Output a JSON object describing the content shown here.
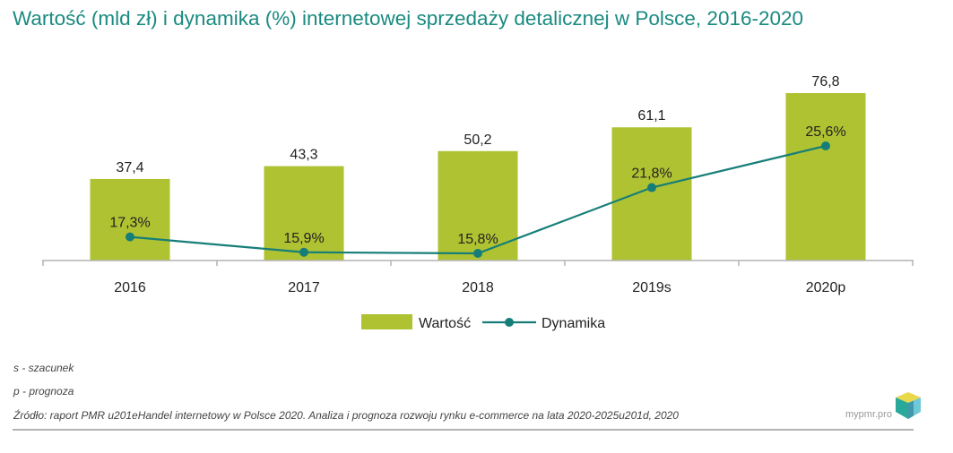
{
  "title": "Wartość (mld zł) i dynamika (%) internetowej sprzedaży detalicznej w Polsce, 2016-2020",
  "chart_data": {
    "type": "bar",
    "title": "Wartość (mld zł) i dynamika (%) internetowej sprzedaży detalicznej w Polsce, 2016-2020",
    "categories": [
      "2016",
      "2017",
      "2018",
      "2019s",
      "2020p"
    ],
    "series": [
      {
        "name": "Wartość",
        "type": "bar",
        "values": [
          37.4,
          43.3,
          50.2,
          61.1,
          76.8
        ],
        "labels": [
          "37,4",
          "43,3",
          "50,2",
          "61,1",
          "76,8"
        ],
        "color": "#afc232"
      },
      {
        "name": "Dynamika",
        "type": "line",
        "values": [
          17.3,
          15.9,
          15.8,
          21.8,
          25.6
        ],
        "labels": [
          "17,3%",
          "15,9%",
          "15,8%",
          "21,8%",
          "25,6%"
        ],
        "color": "#167e78"
      }
    ],
    "legend": "bottom",
    "grid": false
  },
  "notes": {
    "s": "s - szacunek",
    "p": "p - prognoza",
    "source": "Źródło: raport PMR u201eHandel internetowy w Polsce 2020. Analiza i prognoza rozwoju rynku e-commerce na lata 2020-2025u201d, 2020"
  },
  "brand": "mypmr.pro",
  "colors": {
    "title": "#1a8a80",
    "bar": "#afc232",
    "line": "#167e78",
    "axis": "#b3b3b3"
  }
}
